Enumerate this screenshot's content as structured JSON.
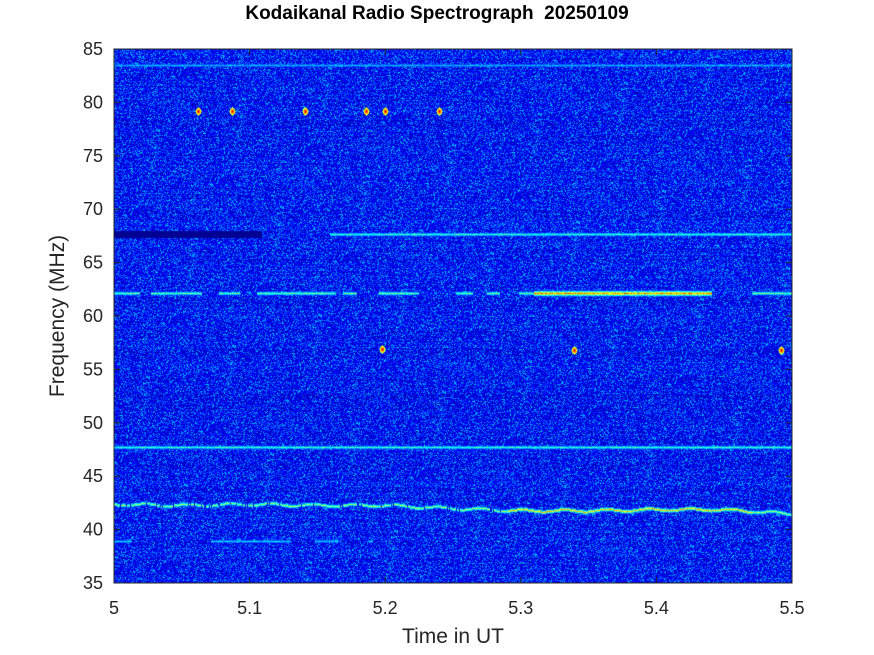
{
  "chart_data": {
    "type": "heatmap",
    "title": "Kodaikanal Radio Spectrograph  20250109",
    "xlabel": "Time in UT",
    "ylabel": "Frequency (MHz)",
    "xlim": [
      5,
      5.5
    ],
    "ylim": [
      35,
      85
    ],
    "xticks": [
      5,
      5.1,
      5.2,
      5.3,
      5.4,
      5.5
    ],
    "xtick_labels": [
      "5",
      "5.1",
      "5.2",
      "5.3",
      "5.4",
      "5.5"
    ],
    "yticks": [
      35,
      40,
      45,
      50,
      55,
      60,
      65,
      70,
      75,
      80,
      85
    ],
    "colormap": "jet",
    "background_color": "#0b2fa8",
    "features": [
      {
        "kind": "constant_line",
        "freq_mhz": 47.7,
        "t_start": 5.0,
        "t_end": 5.5,
        "level": 0.45
      },
      {
        "kind": "constant_line",
        "freq_mhz": 83.5,
        "t_start": 5.0,
        "t_end": 5.5,
        "level": 0.32
      },
      {
        "kind": "constant_line",
        "freq_mhz": 67.7,
        "t_start": 5.16,
        "t_end": 5.5,
        "level": 0.45
      },
      {
        "kind": "dark_band",
        "freq_mhz": 67.7,
        "t_start": 5.0,
        "t_end": 5.108
      },
      {
        "kind": "intermittent_line",
        "freq_mhz": 62.2,
        "t_start": 5.0,
        "t_end": 5.5,
        "level": 0.5
      },
      {
        "kind": "burst_band",
        "freq_mhz": 62.2,
        "t_start": 5.31,
        "t_end": 5.44,
        "level": 0.78
      },
      {
        "kind": "drift_line",
        "t_start": 5.0,
        "t_end": 5.5,
        "freqs_mhz": [
          42.4,
          42.3,
          42.4,
          42.3,
          42.3,
          42.0,
          41.8,
          41.8,
          41.9,
          41.9,
          41.5
        ],
        "level": 0.55
      },
      {
        "kind": "intermittent_line",
        "freq_mhz": 38.9,
        "t_start": 5.0,
        "t_end": 5.19,
        "level": 0.35
      }
    ],
    "hot_spots": [
      {
        "t": 5.062,
        "freq_mhz": 79.2
      },
      {
        "t": 5.087,
        "freq_mhz": 79.2
      },
      {
        "t": 5.141,
        "freq_mhz": 79.2
      },
      {
        "t": 5.186,
        "freq_mhz": 79.2
      },
      {
        "t": 5.2,
        "freq_mhz": 79.2
      },
      {
        "t": 5.24,
        "freq_mhz": 79.2
      },
      {
        "t": 5.198,
        "freq_mhz": 56.9
      },
      {
        "t": 5.339,
        "freq_mhz": 56.8
      },
      {
        "t": 5.492,
        "freq_mhz": 56.8
      }
    ]
  }
}
